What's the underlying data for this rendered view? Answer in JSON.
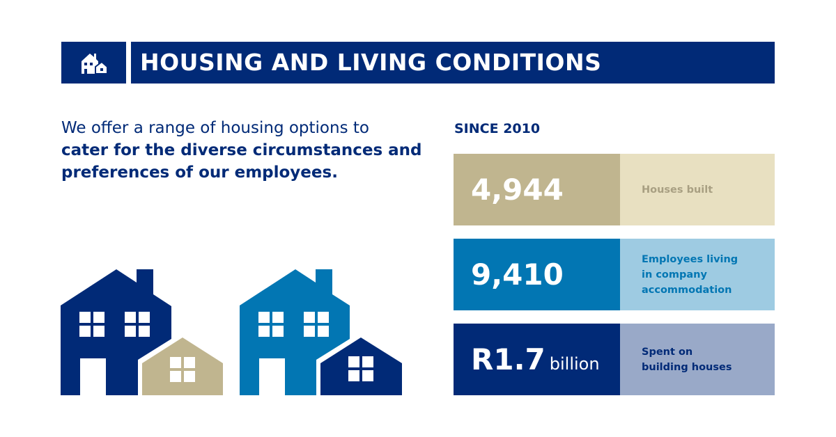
{
  "header": {
    "icon": "houses-icon",
    "title": "HOUSING AND LIVING CONDITIONS"
  },
  "intro": {
    "line_regular": "We offer a range of housing options to",
    "line_bold": "cater for the diverse circumstances and preferences of our employees."
  },
  "since_label": "SINCE 2010",
  "stats": [
    {
      "value": "4,944",
      "unit": "",
      "label": "Houses built",
      "left_color": "#c0b58f",
      "right_color": "#e8e0c1",
      "label_color": "#a89f82"
    },
    {
      "value": "9,410",
      "unit": "",
      "label": "Employees living in company accommodation",
      "left_color": "#0276b3",
      "right_color": "#9ecbe2",
      "label_color": "#0276b3"
    },
    {
      "value": "R1.7",
      "unit": "billion",
      "label": "Spent on building houses",
      "left_color": "#012a77",
      "right_color": "#99a9c8",
      "label_color": "#012a77"
    }
  ],
  "illustration": {
    "icon": "houses-illustration",
    "colors": {
      "navy": "#012a77",
      "blue": "#0276b3",
      "beige": "#c0b58f"
    }
  }
}
